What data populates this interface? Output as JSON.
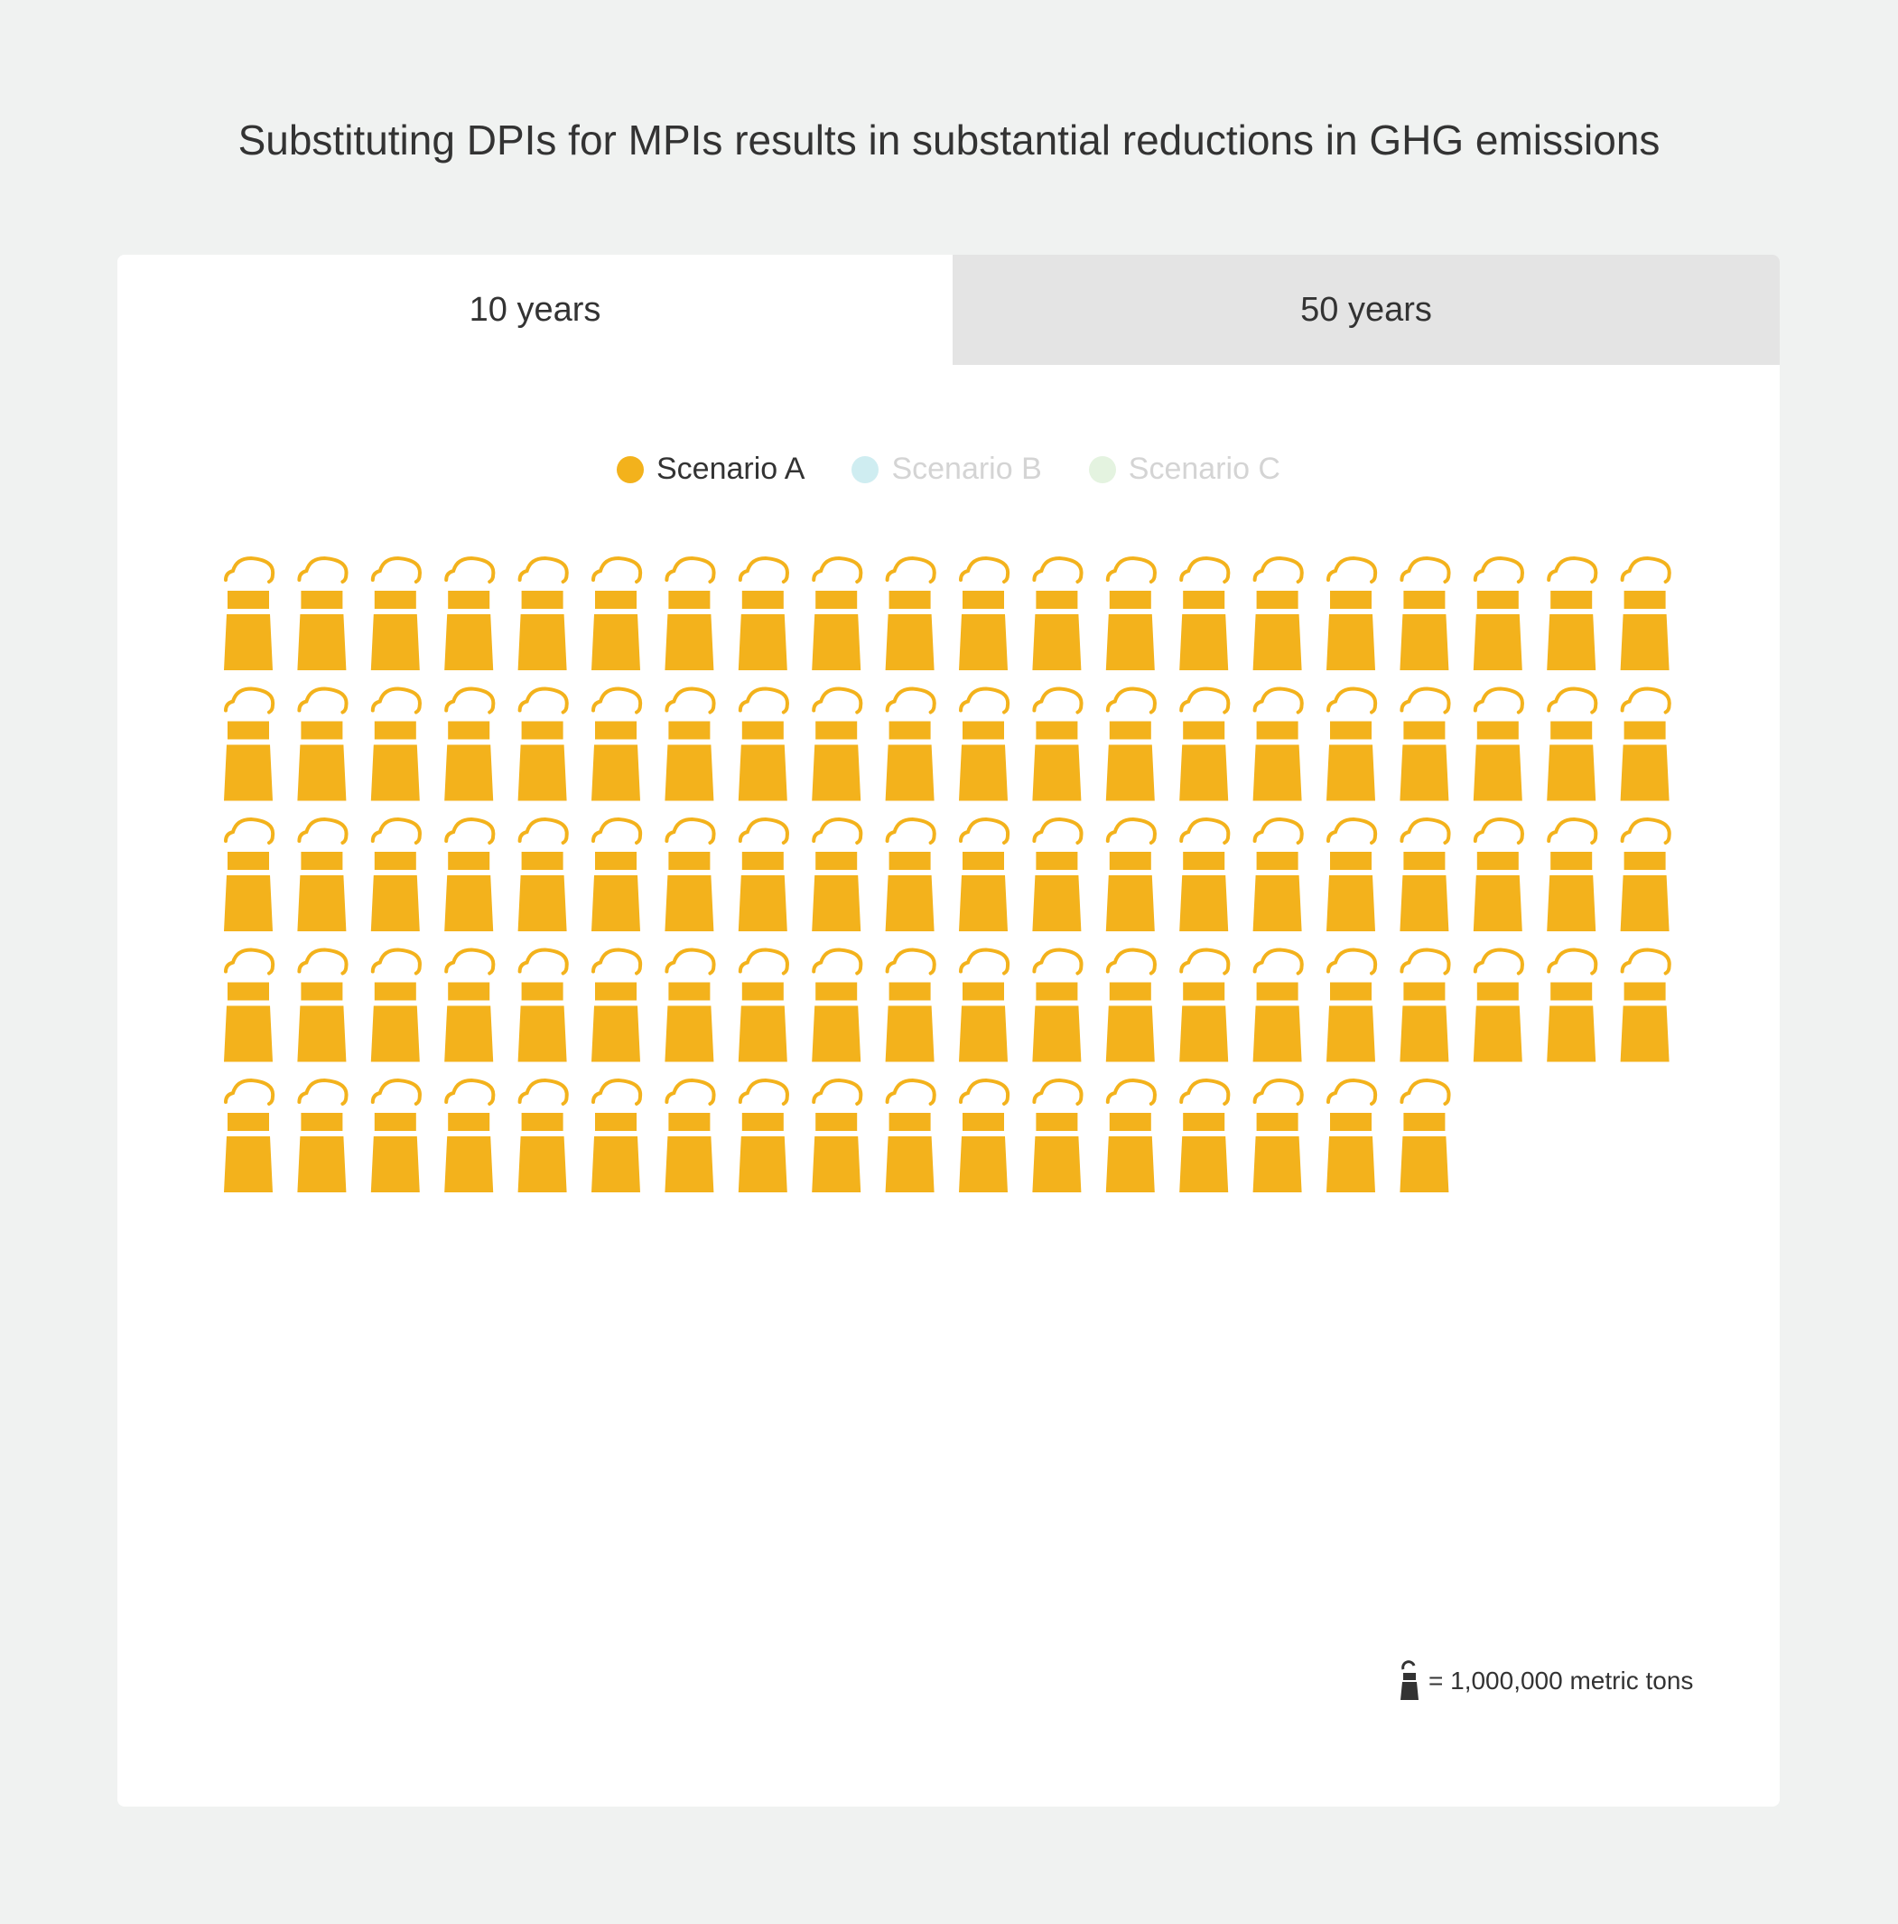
{
  "title": "Substituting DPIs for MPIs results in substantial reductions in GHG emissions",
  "tabs": [
    {
      "label": "10 years",
      "active": true
    },
    {
      "label": "50 years",
      "active": false
    }
  ],
  "legend": [
    {
      "label": "Scenario A",
      "color": "#f3b21c",
      "text_color": "#333333",
      "active": true
    },
    {
      "label": "Scenario B",
      "color": "#cfedf1",
      "text_color": "#d4d4d4",
      "active": false
    },
    {
      "label": "Scenario C",
      "color": "#e4f3e0",
      "text_color": "#d4d4d4",
      "active": false
    }
  ],
  "key": {
    "icon": "factory-icon",
    "label": "= 1,000,000 metric tons"
  },
  "chart_data": {
    "type": "pictograph",
    "icon": "factory-icon",
    "unit_value": 1000000,
    "unit_label": "metric tons",
    "period": "10 years",
    "series": [
      {
        "name": "Scenario A",
        "icon_count": 97,
        "value": 97000000,
        "color": "#f3b21c"
      }
    ]
  }
}
